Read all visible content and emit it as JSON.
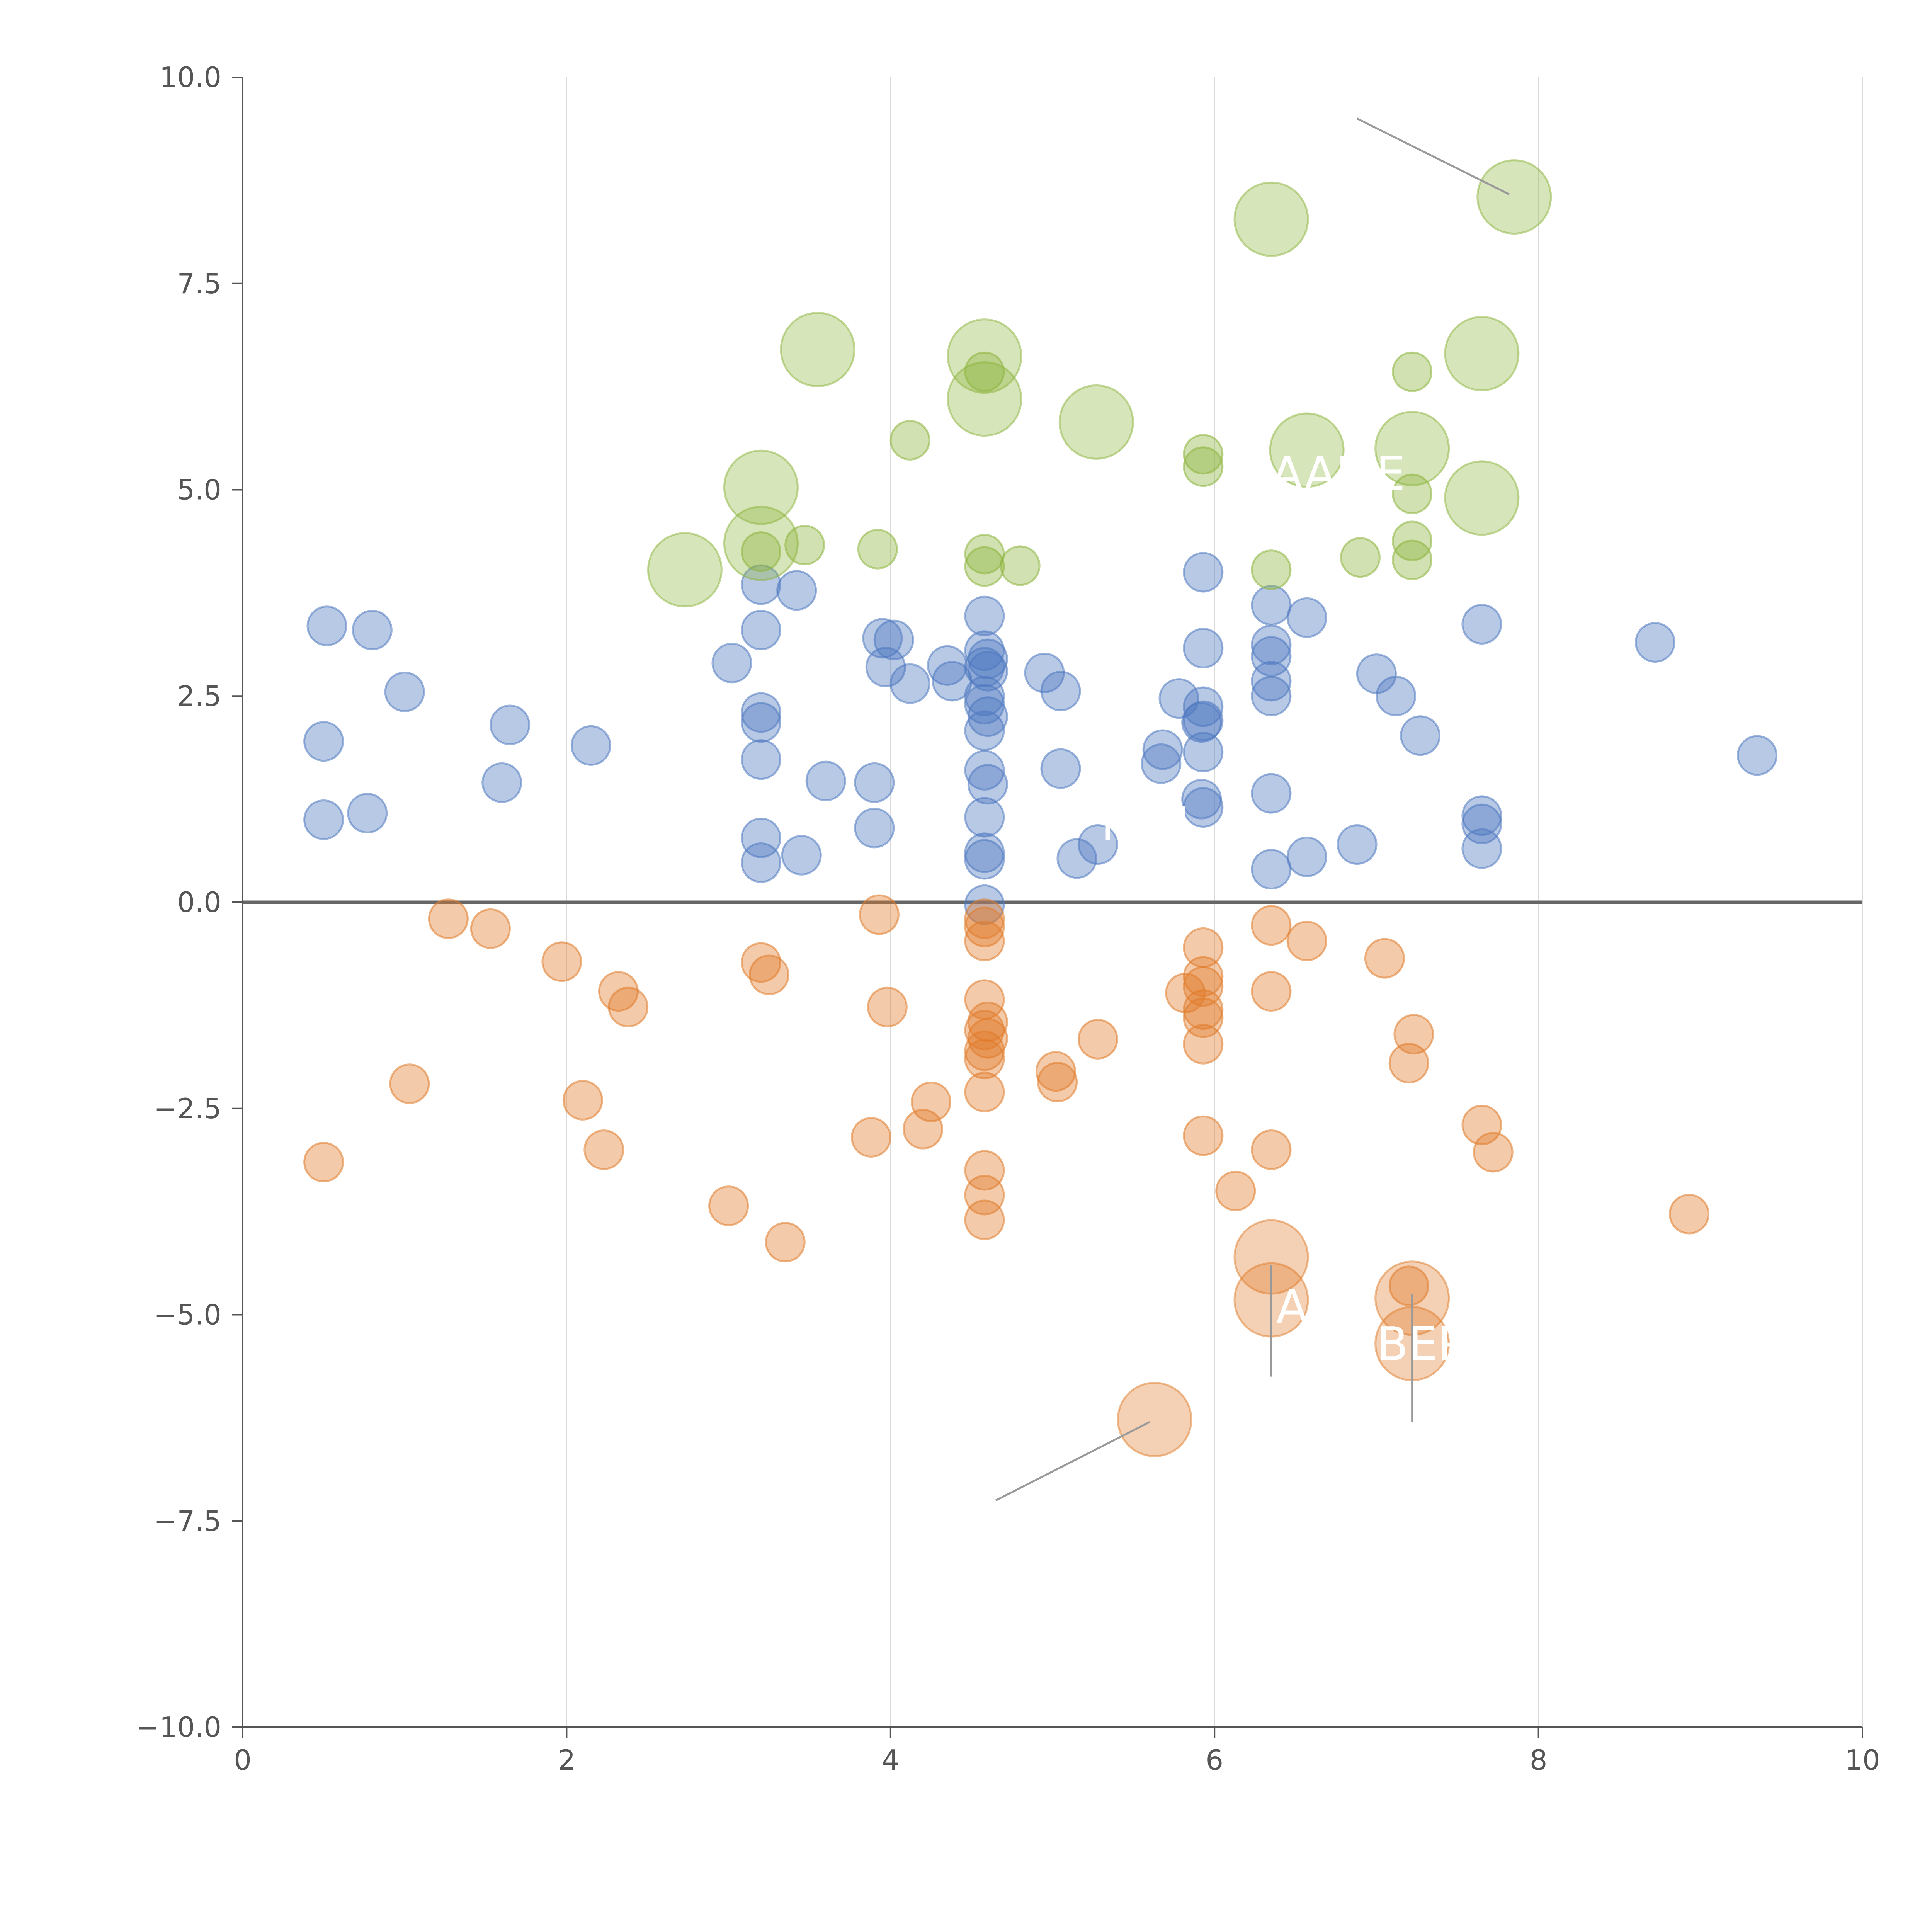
{
  "chart_data": {
    "type": "scatter",
    "xlim": [
      0,
      10
    ],
    "ylim": [
      -10,
      10
    ],
    "x_ticks": [
      "0",
      "2",
      "4",
      "6",
      "8",
      "10"
    ],
    "y_ticks": [
      "10.0",
      "7.5",
      "5.0",
      "2.5",
      "0.0",
      "−2.5",
      "−5.0",
      "−7.5",
      "−10.0"
    ],
    "x_tick_values": [
      0,
      2,
      4,
      6,
      8,
      10
    ],
    "y_tick_values": [
      10,
      7.5,
      5,
      2.5,
      0,
      -2.5,
      -5,
      -7.5,
      -10
    ],
    "grid": "vertical",
    "zero_line": true,
    "colors": {
      "blue": "#4e79c0",
      "orange": "#e07b2a",
      "green": "#8cb43c",
      "axis": "#555555",
      "grid": "#d9d9d9",
      "zero": "#666666",
      "leader": "#999999"
    },
    "series": [
      {
        "name": "blue",
        "color": "#4e79c0",
        "points": [
          [
            0.52,
            3.35
          ],
          [
            0.8,
            3.3
          ],
          [
            1.0,
            2.55
          ],
          [
            0.5,
            1.95
          ],
          [
            0.5,
            1.0
          ],
          [
            0.77,
            1.08
          ],
          [
            1.6,
            1.45
          ],
          [
            1.65,
            2.15
          ],
          [
            2.15,
            1.9
          ],
          [
            3.02,
            2.9
          ],
          [
            3.2,
            3.85
          ],
          [
            3.42,
            3.78
          ],
          [
            3.2,
            3.3
          ],
          [
            3.2,
            2.3
          ],
          [
            3.2,
            2.18
          ],
          [
            3.2,
            1.73
          ],
          [
            3.2,
            0.78
          ],
          [
            3.2,
            0.48
          ],
          [
            3.45,
            0.57
          ],
          [
            3.6,
            1.47
          ],
          [
            3.9,
            1.45
          ],
          [
            3.9,
            0.9
          ],
          [
            3.95,
            3.2
          ],
          [
            4.02,
            3.18
          ],
          [
            3.97,
            2.85
          ],
          [
            4.12,
            2.65
          ],
          [
            4.35,
            2.87
          ],
          [
            4.38,
            2.68
          ],
          [
            4.58,
            3.47
          ],
          [
            4.58,
            3.05
          ],
          [
            4.6,
            2.95
          ],
          [
            4.58,
            2.85
          ],
          [
            4.6,
            2.8
          ],
          [
            4.58,
            2.5
          ],
          [
            4.58,
            2.4
          ],
          [
            4.6,
            2.25
          ],
          [
            4.58,
            2.08
          ],
          [
            4.58,
            1.6
          ],
          [
            4.6,
            1.43
          ],
          [
            4.58,
            1.03
          ],
          [
            4.58,
            0.6
          ],
          [
            4.58,
            0.52
          ],
          [
            4.58,
            -0.03
          ],
          [
            4.95,
            2.78
          ],
          [
            5.05,
            2.56
          ],
          [
            5.05,
            1.62
          ],
          [
            5.15,
            0.53
          ],
          [
            5.28,
            0.7
          ],
          [
            5.78,
            2.47
          ],
          [
            5.68,
            1.85
          ],
          [
            5.67,
            1.68
          ],
          [
            5.93,
            4.0
          ],
          [
            5.93,
            3.08
          ],
          [
            5.93,
            2.37
          ],
          [
            5.93,
            2.2
          ],
          [
            5.92,
            2.18
          ],
          [
            5.93,
            1.82
          ],
          [
            5.92,
            1.25
          ],
          [
            5.93,
            1.15
          ],
          [
            6.35,
            3.6
          ],
          [
            6.35,
            3.12
          ],
          [
            6.35,
            2.98
          ],
          [
            6.35,
            2.68
          ],
          [
            6.35,
            2.5
          ],
          [
            6.35,
            1.32
          ],
          [
            6.35,
            0.4
          ],
          [
            6.57,
            3.45
          ],
          [
            6.57,
            0.55
          ],
          [
            6.88,
            0.7
          ],
          [
            7.0,
            2.77
          ],
          [
            7.12,
            2.5
          ],
          [
            7.27,
            2.02
          ],
          [
            7.65,
            3.37
          ],
          [
            7.65,
            1.05
          ],
          [
            7.65,
            0.95
          ],
          [
            7.65,
            0.65
          ],
          [
            8.72,
            3.15
          ],
          [
            9.35,
            1.78
          ]
        ]
      },
      {
        "name": "orange",
        "color": "#e07b2a",
        "points": [
          [
            1.27,
            -0.2
          ],
          [
            1.53,
            -0.32
          ],
          [
            1.97,
            -0.72
          ],
          [
            2.32,
            -1.08
          ],
          [
            2.38,
            -1.27
          ],
          [
            1.03,
            -2.2
          ],
          [
            2.1,
            -2.4
          ],
          [
            2.23,
            -3.0
          ],
          [
            0.5,
            -3.15
          ],
          [
            3.0,
            -3.68
          ],
          [
            3.35,
            -4.12
          ],
          [
            3.2,
            -0.73
          ],
          [
            3.25,
            -0.88
          ],
          [
            3.93,
            -0.15
          ],
          [
            3.98,
            -1.27
          ],
          [
            3.88,
            -2.85
          ],
          [
            4.2,
            -2.75
          ],
          [
            4.25,
            -2.42
          ],
          [
            4.58,
            -0.2
          ],
          [
            4.58,
            -0.3
          ],
          [
            4.58,
            -0.47
          ],
          [
            4.58,
            -1.18
          ],
          [
            4.6,
            -1.45
          ],
          [
            4.58,
            -1.55
          ],
          [
            4.6,
            -1.65
          ],
          [
            4.58,
            -1.8
          ],
          [
            4.58,
            -1.9
          ],
          [
            4.58,
            -2.3
          ],
          [
            4.58,
            -3.25
          ],
          [
            4.58,
            -3.55
          ],
          [
            4.58,
            -3.85
          ],
          [
            5.02,
            -2.05
          ],
          [
            5.03,
            -2.18
          ],
          [
            5.28,
            -1.66
          ],
          [
            5.93,
            -0.55
          ],
          [
            5.82,
            -1.1
          ],
          [
            5.93,
            -0.9
          ],
          [
            5.93,
            -1.02
          ],
          [
            5.93,
            -1.3
          ],
          [
            5.93,
            -1.4
          ],
          [
            5.93,
            -1.72
          ],
          [
            5.93,
            -2.83
          ],
          [
            6.13,
            -3.5
          ],
          [
            6.35,
            -0.28
          ],
          [
            6.35,
            -1.08
          ],
          [
            6.35,
            -3.0
          ],
          [
            6.57,
            -0.47
          ],
          [
            7.05,
            -0.68
          ],
          [
            7.23,
            -1.6
          ],
          [
            7.2,
            -1.95
          ],
          [
            7.65,
            -2.7
          ],
          [
            7.72,
            -3.03
          ],
          [
            8.93,
            -3.78
          ],
          [
            7.2,
            -4.65
          ]
        ]
      },
      {
        "name": "green",
        "color": "#8cb43c",
        "points": [
          [
            3.47,
            4.33
          ],
          [
            3.2,
            4.25
          ],
          [
            3.92,
            4.28
          ],
          [
            4.12,
            5.6
          ],
          [
            4.58,
            6.43
          ],
          [
            4.58,
            4.22
          ],
          [
            4.58,
            4.07
          ],
          [
            4.8,
            4.08
          ],
          [
            5.93,
            5.43
          ],
          [
            5.93,
            5.28
          ],
          [
            6.35,
            4.03
          ],
          [
            6.9,
            4.18
          ],
          [
            7.22,
            6.43
          ],
          [
            7.22,
            4.95
          ],
          [
            7.22,
            4.38
          ],
          [
            7.22,
            4.15
          ]
        ]
      }
    ],
    "big_points": [
      {
        "series": "green",
        "x": 2.73,
        "y": 4.03
      },
      {
        "series": "green",
        "x": 3.2,
        "y": 5.03
      },
      {
        "series": "green",
        "x": 3.2,
        "y": 4.35
      },
      {
        "series": "green",
        "x": 3.55,
        "y": 6.7
      },
      {
        "series": "green",
        "x": 4.58,
        "y": 6.62
      },
      {
        "series": "green",
        "x": 4.58,
        "y": 6.1
      },
      {
        "series": "green",
        "x": 5.27,
        "y": 5.82
      },
      {
        "series": "green",
        "x": 6.35,
        "y": 8.28
      },
      {
        "series": "green",
        "x": 6.57,
        "y": 5.48
      },
      {
        "series": "green",
        "x": 7.22,
        "y": 5.5
      },
      {
        "series": "green",
        "x": 7.65,
        "y": 6.65
      },
      {
        "series": "green",
        "x": 7.65,
        "y": 4.9
      },
      {
        "series": "green",
        "x": 7.85,
        "y": 8.55
      },
      {
        "series": "orange",
        "x": 6.35,
        "y": -4.3
      },
      {
        "series": "orange",
        "x": 6.35,
        "y": -4.82
      },
      {
        "series": "orange",
        "x": 7.22,
        "y": -4.8
      },
      {
        "series": "orange",
        "x": 7.22,
        "y": -5.35
      },
      {
        "series": "orange",
        "x": 5.63,
        "y": -6.27
      }
    ],
    "leader_lines": [
      [
        [
          6.88,
          9.5
        ],
        [
          7.82,
          8.58
        ]
      ],
      [
        [
          4.65,
          -7.25
        ],
        [
          5.6,
          -6.3
        ]
      ],
      [
        [
          6.35,
          -4.4
        ],
        [
          6.35,
          -5.75
        ]
      ],
      [
        [
          7.22,
          -4.75
        ],
        [
          7.22,
          -6.3
        ]
      ]
    ],
    "annotations": [
      {
        "text": "AQR",
        "x": 6.38,
        "y": -5.1
      },
      {
        "text": "BEP",
        "x": 7.0,
        "y": -5.55
      },
      {
        "text": "AAME",
        "x": 6.35,
        "y": 5.0
      },
      {
        "text": "MIN",
        "x": 5.3,
        "y": 0.75
      }
    ]
  }
}
